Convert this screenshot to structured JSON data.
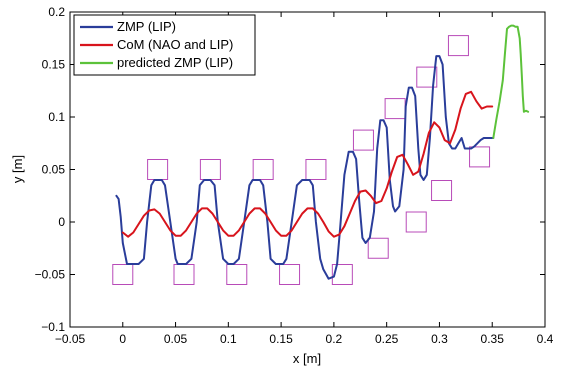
{
  "chart_data": {
    "type": "line",
    "xlabel": "x [m]",
    "ylabel": "y [m]",
    "xlim": [
      -0.05,
      0.4
    ],
    "ylim": [
      -0.1,
      0.2
    ],
    "xticks": [
      -0.05,
      0,
      0.05,
      0.1,
      0.15,
      0.2,
      0.25,
      0.3,
      0.35,
      0.4
    ],
    "xtick_labels": [
      "−0.05",
      "0",
      "0.05",
      "0.1",
      "0.15",
      "0.2",
      "0.25",
      "0.3",
      "0.35",
      "0.4"
    ],
    "yticks": [
      -0.1,
      -0.05,
      0,
      0.05,
      0.1,
      0.15,
      0.2
    ],
    "ytick_labels": [
      "−0.1",
      "−0.05",
      "0",
      "0.05",
      "0.1",
      "0.15",
      "0.2"
    ],
    "grid": false,
    "legend_position": "top-left",
    "series": [
      {
        "name": "ZMP (LIP)",
        "color": "#2a3d9a",
        "x": [
          -0.006,
          -0.004,
          -0.002,
          0.0,
          0.004,
          0.01,
          0.015,
          0.02,
          0.023,
          0.027,
          0.03,
          0.033,
          0.037,
          0.04,
          0.045,
          0.05,
          0.052,
          0.055,
          0.06,
          0.065,
          0.07,
          0.073,
          0.077,
          0.08,
          0.083,
          0.087,
          0.09,
          0.095,
          0.1,
          0.102,
          0.105,
          0.11,
          0.115,
          0.12,
          0.123,
          0.127,
          0.13,
          0.133,
          0.137,
          0.14,
          0.145,
          0.15,
          0.152,
          0.155,
          0.16,
          0.165,
          0.17,
          0.173,
          0.177,
          0.18,
          0.183,
          0.187,
          0.19,
          0.195,
          0.2,
          0.203,
          0.206,
          0.21,
          0.214,
          0.218,
          0.221,
          0.224,
          0.227,
          0.23,
          0.234,
          0.238,
          0.241,
          0.244,
          0.247,
          0.25,
          0.253,
          0.256,
          0.258,
          0.262,
          0.266,
          0.268,
          0.271,
          0.274,
          0.277,
          0.28,
          0.282,
          0.285,
          0.288,
          0.291,
          0.294,
          0.297,
          0.3,
          0.303,
          0.306,
          0.309,
          0.312,
          0.315,
          0.318,
          0.321,
          0.324,
          0.327,
          0.33,
          0.333,
          0.336,
          0.339,
          0.342,
          0.345,
          0.348,
          0.351
        ],
        "y": [
          0.025,
          0.022,
          0.005,
          -0.02,
          -0.04,
          -0.04,
          -0.04,
          -0.035,
          0.0,
          0.035,
          0.04,
          0.04,
          0.04,
          0.035,
          0.0,
          -0.035,
          -0.04,
          -0.04,
          -0.04,
          -0.035,
          0.0,
          0.035,
          0.04,
          0.04,
          0.04,
          0.035,
          0.0,
          -0.035,
          -0.04,
          -0.04,
          -0.04,
          -0.035,
          0.0,
          0.035,
          0.04,
          0.04,
          0.04,
          0.035,
          0.0,
          -0.035,
          -0.04,
          -0.04,
          -0.04,
          -0.035,
          0.0,
          0.035,
          0.04,
          0.04,
          0.04,
          0.035,
          0.0,
          -0.035,
          -0.045,
          -0.054,
          -0.052,
          -0.04,
          -0.005,
          0.045,
          0.067,
          0.067,
          0.06,
          0.02,
          -0.015,
          -0.02,
          -0.015,
          0.01,
          0.07,
          0.097,
          0.097,
          0.09,
          0.04,
          0.015,
          0.01,
          0.015,
          0.05,
          0.11,
          0.128,
          0.128,
          0.12,
          0.07,
          0.045,
          0.04,
          0.045,
          0.08,
          0.13,
          0.158,
          0.158,
          0.15,
          0.1,
          0.075,
          0.07,
          0.07,
          0.075,
          0.08,
          0.07,
          0.07,
          0.07,
          0.072,
          0.075,
          0.078,
          0.08,
          0.08,
          0.08,
          0.08
        ],
        "width": 2
      },
      {
        "name": "CoM (NAO and LIP)",
        "color": "#d8141c",
        "x": [
          0.0,
          0.005,
          0.01,
          0.015,
          0.02,
          0.025,
          0.03,
          0.035,
          0.04,
          0.045,
          0.05,
          0.055,
          0.06,
          0.065,
          0.07,
          0.075,
          0.08,
          0.085,
          0.09,
          0.095,
          0.1,
          0.105,
          0.11,
          0.115,
          0.12,
          0.125,
          0.13,
          0.135,
          0.14,
          0.145,
          0.15,
          0.155,
          0.16,
          0.165,
          0.17,
          0.175,
          0.18,
          0.185,
          0.19,
          0.195,
          0.2,
          0.205,
          0.21,
          0.215,
          0.22,
          0.225,
          0.23,
          0.235,
          0.24,
          0.245,
          0.25,
          0.255,
          0.26,
          0.265,
          0.27,
          0.275,
          0.28,
          0.285,
          0.29,
          0.295,
          0.3,
          0.305,
          0.31,
          0.315,
          0.32,
          0.325,
          0.33,
          0.335,
          0.34,
          0.345,
          0.35
        ],
        "y": [
          -0.01,
          -0.014,
          -0.01,
          -0.002,
          0.006,
          0.011,
          0.012,
          0.008,
          0.0,
          -0.008,
          -0.013,
          -0.013,
          -0.008,
          0.0,
          0.008,
          0.013,
          0.013,
          0.008,
          0.0,
          -0.008,
          -0.013,
          -0.013,
          -0.008,
          0.0,
          0.008,
          0.013,
          0.013,
          0.008,
          0.0,
          -0.008,
          -0.013,
          -0.013,
          -0.008,
          0.0,
          0.008,
          0.013,
          0.013,
          0.008,
          0.0,
          -0.009,
          -0.014,
          -0.012,
          -0.004,
          0.008,
          0.02,
          0.029,
          0.03,
          0.025,
          0.018,
          0.02,
          0.032,
          0.048,
          0.062,
          0.064,
          0.055,
          0.045,
          0.048,
          0.065,
          0.085,
          0.095,
          0.09,
          0.078,
          0.075,
          0.088,
          0.108,
          0.122,
          0.124,
          0.115,
          0.108,
          0.11,
          0.11
        ],
        "width": 2
      },
      {
        "name": "predicted ZMP (LIP)",
        "color": "#5cc23a",
        "x": [
          0.351,
          0.354,
          0.357,
          0.36,
          0.362,
          0.364,
          0.366,
          0.368,
          0.37,
          0.372,
          0.374,
          0.376,
          0.377,
          0.378,
          0.379,
          0.38,
          0.382,
          0.384
        ],
        "y": [
          0.08,
          0.098,
          0.115,
          0.135,
          0.16,
          0.184,
          0.186,
          0.187,
          0.187,
          0.186,
          0.186,
          0.175,
          0.16,
          0.14,
          0.12,
          0.105,
          0.106,
          0.105
        ],
        "width": 2
      }
    ],
    "footprints": {
      "name": "footprint markers",
      "color": "#b84bb8",
      "points": [
        [
          0.0,
          -0.05
        ],
        [
          0.033,
          0.05
        ],
        [
          0.058,
          -0.05
        ],
        [
          0.083,
          0.05
        ],
        [
          0.108,
          -0.05
        ],
        [
          0.133,
          0.05
        ],
        [
          0.158,
          -0.05
        ],
        [
          0.183,
          0.05
        ],
        [
          0.208,
          -0.05
        ],
        [
          0.228,
          0.078
        ],
        [
          0.242,
          -0.025
        ],
        [
          0.258,
          0.108
        ],
        [
          0.278,
          0.0
        ],
        [
          0.288,
          0.138
        ],
        [
          0.302,
          0.03
        ],
        [
          0.318,
          0.168
        ],
        [
          0.338,
          0.062
        ]
      ]
    },
    "legend": {
      "entries": [
        "ZMP (LIP)",
        "CoM (NAO and LIP)",
        "predicted ZMP (LIP)"
      ]
    }
  }
}
